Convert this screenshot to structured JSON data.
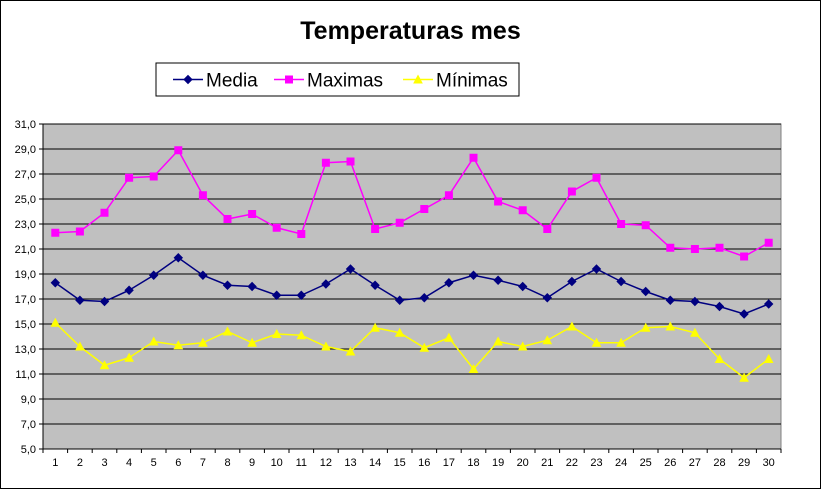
{
  "chart_data": {
    "type": "line",
    "title": "Temperaturas mes",
    "xlabel": "",
    "ylabel": "",
    "x": [
      1,
      2,
      3,
      4,
      5,
      6,
      7,
      8,
      9,
      10,
      11,
      12,
      13,
      14,
      15,
      16,
      17,
      18,
      19,
      20,
      21,
      22,
      23,
      24,
      25,
      26,
      27,
      28,
      29,
      30
    ],
    "ylim": [
      5.0,
      31.0
    ],
    "yticks": [
      "5,0",
      "7,0",
      "9,0",
      "11,0",
      "13,0",
      "15,0",
      "17,0",
      "19,0",
      "21,0",
      "23,0",
      "25,0",
      "27,0",
      "29,0",
      "31,0"
    ],
    "grid": true,
    "legend_position": "top",
    "plot_background": "#c0c0c0",
    "series": [
      {
        "name": "Media",
        "color": "#000080",
        "marker": "diamond",
        "values": [
          18.3,
          16.9,
          16.8,
          17.7,
          18.9,
          20.3,
          18.9,
          18.1,
          18.0,
          17.3,
          17.3,
          18.2,
          19.4,
          18.1,
          16.9,
          17.1,
          18.3,
          18.9,
          18.5,
          18.0,
          17.1,
          18.4,
          19.4,
          18.4,
          17.6,
          16.9,
          16.8,
          16.4,
          15.8,
          16.6
        ]
      },
      {
        "name": "Maximas",
        "color": "#ff00ff",
        "marker": "square",
        "values": [
          22.3,
          22.4,
          23.9,
          26.7,
          26.8,
          28.9,
          25.3,
          23.4,
          23.8,
          22.7,
          22.2,
          27.9,
          28.0,
          22.6,
          23.1,
          24.2,
          25.3,
          28.3,
          24.8,
          24.1,
          22.6,
          25.6,
          26.7,
          23.0,
          22.9,
          21.1,
          21.0,
          21.1,
          20.4,
          21.5
        ]
      },
      {
        "name": "Mínimas",
        "color": "#ffff00",
        "marker": "triangle",
        "values": [
          15.1,
          13.2,
          11.7,
          12.3,
          13.6,
          13.3,
          13.5,
          14.4,
          13.5,
          14.2,
          14.1,
          13.2,
          12.8,
          14.7,
          14.3,
          13.1,
          13.9,
          11.4,
          13.6,
          13.2,
          13.7,
          14.8,
          13.5,
          13.5,
          14.7,
          14.8,
          14.3,
          12.2,
          10.7,
          12.2
        ]
      }
    ]
  }
}
